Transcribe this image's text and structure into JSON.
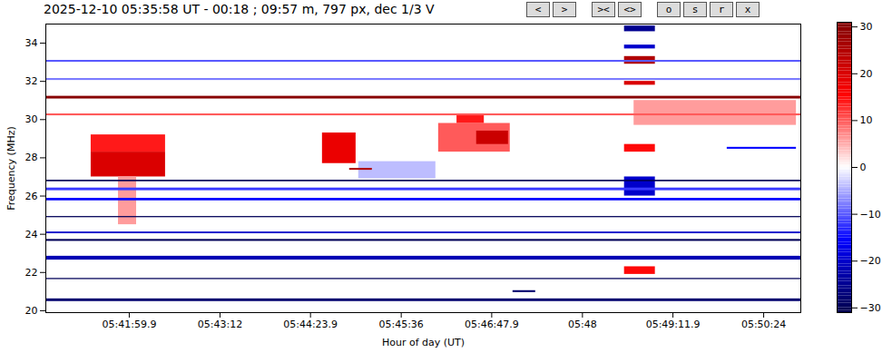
{
  "chart_data": {
    "type": "heatmap",
    "title": "2025-12-10 05:35:58 UT - 00:18 ; 09:57 m, 797 px, dec 1/3 V",
    "buttons": [
      "<",
      ">",
      "><",
      "<>",
      "o",
      "s",
      "r",
      "x"
    ],
    "x_label": "Hour of day (UT)",
    "y_label": "Frequency (MHz)",
    "xlim": [
      20453.6,
      21053.5
    ],
    "xticks": [
      {
        "value": 20519.9,
        "label": "05:41:59.9"
      },
      {
        "value": 20592,
        "label": "05:43:12"
      },
      {
        "value": 20663.9,
        "label": "05:44:23.9"
      },
      {
        "value": 20736,
        "label": "05:45:36"
      },
      {
        "value": 20807.9,
        "label": "05:46:47.9"
      },
      {
        "value": 20880,
        "label": "05:48"
      },
      {
        "value": 20951.9,
        "label": "05:49:11.9"
      },
      {
        "value": 21024,
        "label": "05:50:24"
      }
    ],
    "ylim": [
      19.9,
      35.0
    ],
    "yticks": [
      20,
      22,
      24,
      26,
      28,
      30,
      32,
      34
    ],
    "colorbar_range": [
      -31,
      31
    ],
    "colorbar_ticks": [
      -30,
      -20,
      -10,
      0,
      10,
      20,
      30
    ],
    "cells": [
      {
        "x0": 20489.6,
        "x1": 20548.7,
        "y0": 28.3,
        "y1": 29.2,
        "value": 14
      },
      {
        "x0": 20489.6,
        "x1": 20548.7,
        "y0": 27.0,
        "y1": 28.3,
        "value": 20
      },
      {
        "x0": 20511.3,
        "x1": 20525.7,
        "y0": 24.5,
        "y1": 27.0,
        "value": 6
      },
      {
        "x0": 20673.4,
        "x1": 20700.1,
        "y0": 27.7,
        "y1": 29.3,
        "value": 18
      },
      {
        "x0": 20765.7,
        "x1": 20822.6,
        "y0": 28.3,
        "y1": 29.8,
        "value": 10
      },
      {
        "x0": 20795.9,
        "x1": 20821.2,
        "y0": 28.7,
        "y1": 29.4,
        "value": 22
      },
      {
        "x0": 20780.3,
        "x1": 20802.0,
        "y0": 29.8,
        "y1": 30.3,
        "value": 14
      },
      {
        "x0": 20921.0,
        "x1": 21050.0,
        "y0": 29.7,
        "y1": 31.0,
        "value": 6
      },
      {
        "x0": 20702.2,
        "x1": 20763.5,
        "y0": 26.9,
        "y1": 27.8,
        "value": -4
      },
      {
        "x0": 20695.0,
        "x1": 20713.0,
        "y0": 27.35,
        "y1": 27.45,
        "value": 25
      },
      {
        "x0": 20824.8,
        "x1": 20842.8,
        "y0": 20.95,
        "y1": 21.05,
        "value": -28
      },
      {
        "x0": 20995.0,
        "x1": 21050.0,
        "y0": 28.45,
        "y1": 28.55,
        "value": -15
      },
      {
        "x0": 20913.4,
        "x1": 20937.9,
        "y0": 31.8,
        "y1": 32.0,
        "value": 20
      },
      {
        "x0": 20913.4,
        "x1": 20937.9,
        "y0": 32.9,
        "y1": 33.3,
        "value": 25
      },
      {
        "x0": 20913.4,
        "x1": 20937.9,
        "y0": 33.7,
        "y1": 33.9,
        "value": -20
      },
      {
        "x0": 20913.4,
        "x1": 20937.9,
        "y0": 34.6,
        "y1": 34.9,
        "value": -25
      },
      {
        "x0": 20913.4,
        "x1": 20937.9,
        "y0": 26.0,
        "y1": 27.0,
        "value": -20
      },
      {
        "x0": 20913.4,
        "x1": 20937.9,
        "y0": 28.3,
        "y1": 28.7,
        "value": 15
      },
      {
        "x0": 20913.4,
        "x1": 20937.9,
        "y0": 21.9,
        "y1": 22.3,
        "value": 15
      },
      {
        "x0": 20453.6,
        "x1": 21053.5,
        "y0": 31.08,
        "y1": 31.22,
        "value": 30
      },
      {
        "x0": 20453.6,
        "x1": 21053.5,
        "y0": 30.2,
        "y1": 30.3,
        "value": 10
      },
      {
        "x0": 20453.6,
        "x1": 21053.5,
        "y0": 33.0,
        "y1": 33.1,
        "value": -10
      },
      {
        "x0": 20453.6,
        "x1": 21053.5,
        "y0": 32.05,
        "y1": 32.15,
        "value": -8
      },
      {
        "x0": 20453.6,
        "x1": 21053.5,
        "y0": 26.75,
        "y1": 26.83,
        "value": -30
      },
      {
        "x0": 20453.6,
        "x1": 21053.5,
        "y0": 26.28,
        "y1": 26.42,
        "value": -12
      },
      {
        "x0": 20453.6,
        "x1": 21053.5,
        "y0": 25.75,
        "y1": 25.88,
        "value": -15
      },
      {
        "x0": 20453.6,
        "x1": 21053.5,
        "y0": 24.87,
        "y1": 24.93,
        "value": -30
      },
      {
        "x0": 20453.6,
        "x1": 21053.5,
        "y0": 24.03,
        "y1": 24.12,
        "value": -20
      },
      {
        "x0": 20453.6,
        "x1": 21053.5,
        "y0": 23.63,
        "y1": 23.73,
        "value": -30
      },
      {
        "x0": 20453.6,
        "x1": 21053.5,
        "y0": 22.65,
        "y1": 22.85,
        "value": -22
      },
      {
        "x0": 20453.6,
        "x1": 21053.5,
        "y0": 21.63,
        "y1": 21.69,
        "value": -30
      },
      {
        "x0": 20453.6,
        "x1": 21053.5,
        "y0": 20.48,
        "y1": 20.62,
        "value": -28
      }
    ]
  }
}
